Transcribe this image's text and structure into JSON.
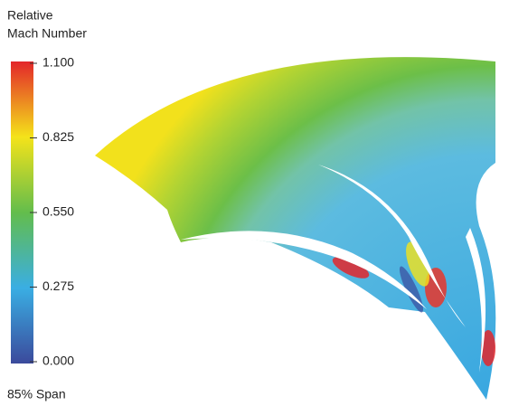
{
  "chart_data": {
    "type": "contour",
    "title_lines": [
      "Relative",
      "Mach Number"
    ],
    "annotation": "85% Span",
    "colormap": [
      "#3b4a9c",
      "#3aaee3",
      "#63bd4c",
      "#f4e31a",
      "#e3262a"
    ],
    "ylim": [
      0,
      1.1
    ],
    "yticks": [
      {
        "value": 0,
        "label": "0.000"
      },
      {
        "value": 0.275,
        "label": "0.275"
      },
      {
        "value": 0.55,
        "label": "0.550"
      },
      {
        "value": 0.825,
        "label": "0.825"
      },
      {
        "value": 1.1,
        "label": "1.100"
      }
    ]
  }
}
